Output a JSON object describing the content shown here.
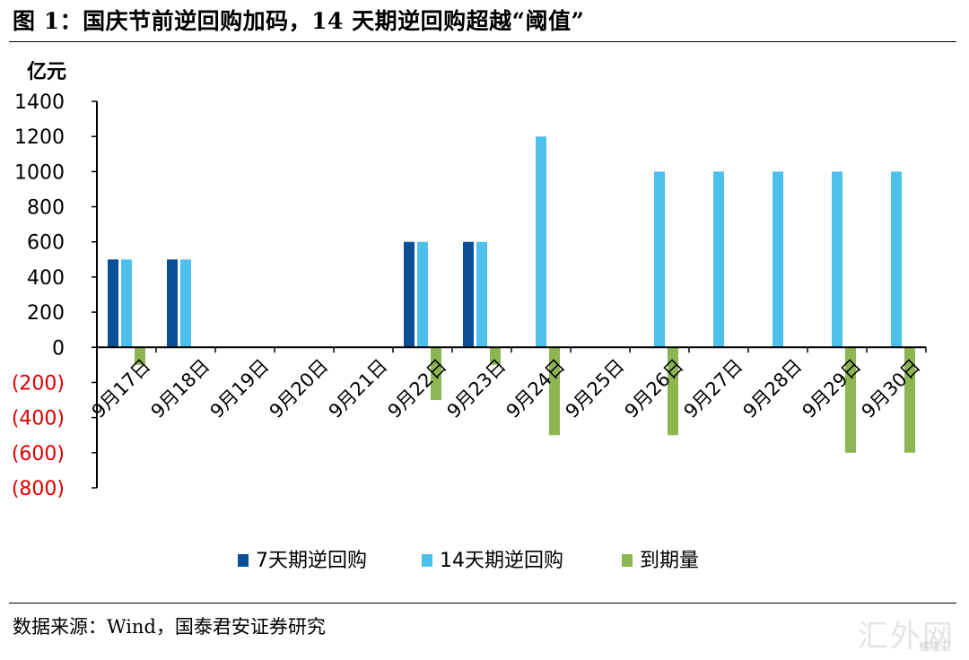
{
  "figure": {
    "title": "图 1：国庆节前逆回购加码，14 天期逆回购超越“阈值”",
    "source": "数据来源：Wind，国泰君安证券研究",
    "watermark": "汇外网",
    "watermark_sub": "格隆汇"
  },
  "colors": {
    "series_7d": "#0b4f96",
    "series_14d": "#4ec0ec",
    "series_maturity": "#8db552",
    "negative_tick": "#e00000"
  },
  "chart_data": {
    "type": "bar",
    "title": "",
    "unit_label": "亿元",
    "xlabel": "",
    "ylabel": "亿元",
    "ylim": [
      -800,
      1400
    ],
    "y_ticks": [
      1400,
      1200,
      1000,
      800,
      600,
      400,
      200,
      0,
      -200,
      -400,
      -600,
      -800
    ],
    "y_tick_labels": [
      "1400",
      "1200",
      "1000",
      "800",
      "600",
      "400",
      "200",
      "0",
      "(200)",
      "(400)",
      "(600)",
      "(800)"
    ],
    "categories": [
      "9月17日",
      "9月18日",
      "9月19日",
      "9月20日",
      "9月21日",
      "9月22日",
      "9月23日",
      "9月24日",
      "9月25日",
      "9月26日",
      "9月27日",
      "9月28日",
      "9月29日",
      "9月30日"
    ],
    "series": [
      {
        "name": "7天期逆回购",
        "values": [
          500,
          500,
          0,
          0,
          0,
          600,
          600,
          0,
          0,
          0,
          0,
          0,
          0,
          0
        ]
      },
      {
        "name": "14天期逆回购",
        "values": [
          500,
          500,
          0,
          0,
          0,
          600,
          600,
          1200,
          0,
          1000,
          1000,
          1000,
          1000,
          1000
        ]
      },
      {
        "name": "到期量",
        "values": [
          -100,
          0,
          0,
          0,
          0,
          -300,
          -100,
          -500,
          0,
          -500,
          0,
          0,
          -600,
          -600
        ]
      }
    ],
    "grid": false,
    "legend_position": "bottom"
  }
}
